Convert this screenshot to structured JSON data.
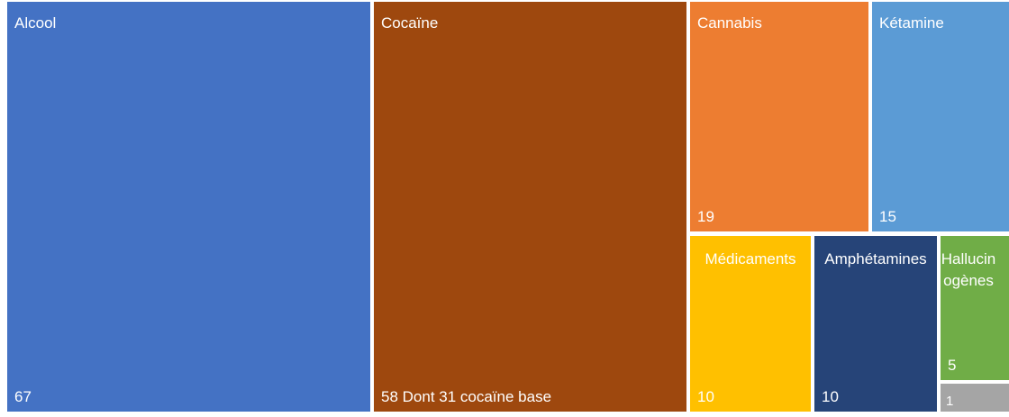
{
  "chart_data": {
    "type": "treemap",
    "items": [
      {
        "name": "Alcool",
        "value": 67,
        "value_label": "67",
        "color": "#4472C4"
      },
      {
        "name": "Cocaïne",
        "value": 58,
        "value_label": "58 Dont 31 cocaïne base",
        "color": "#9E480E"
      },
      {
        "name": "Cannabis",
        "value": 19,
        "value_label": "19",
        "color": "#ED7D31"
      },
      {
        "name": "Kétamine",
        "value": 15,
        "value_label": "15",
        "color": "#5B9BD5"
      },
      {
        "name": "Médicaments",
        "value": 10,
        "value_label": "10",
        "color": "#FFC000"
      },
      {
        "name": "Amphétamines",
        "value": 10,
        "value_label": "10",
        "color": "#264478"
      },
      {
        "name": "Hallucinogènes",
        "value": 5,
        "value_label": "5",
        "color": "#70AD47"
      },
      {
        "name": "",
        "value": 1,
        "value_label": "1",
        "color": "#A5A5A5"
      }
    ]
  }
}
